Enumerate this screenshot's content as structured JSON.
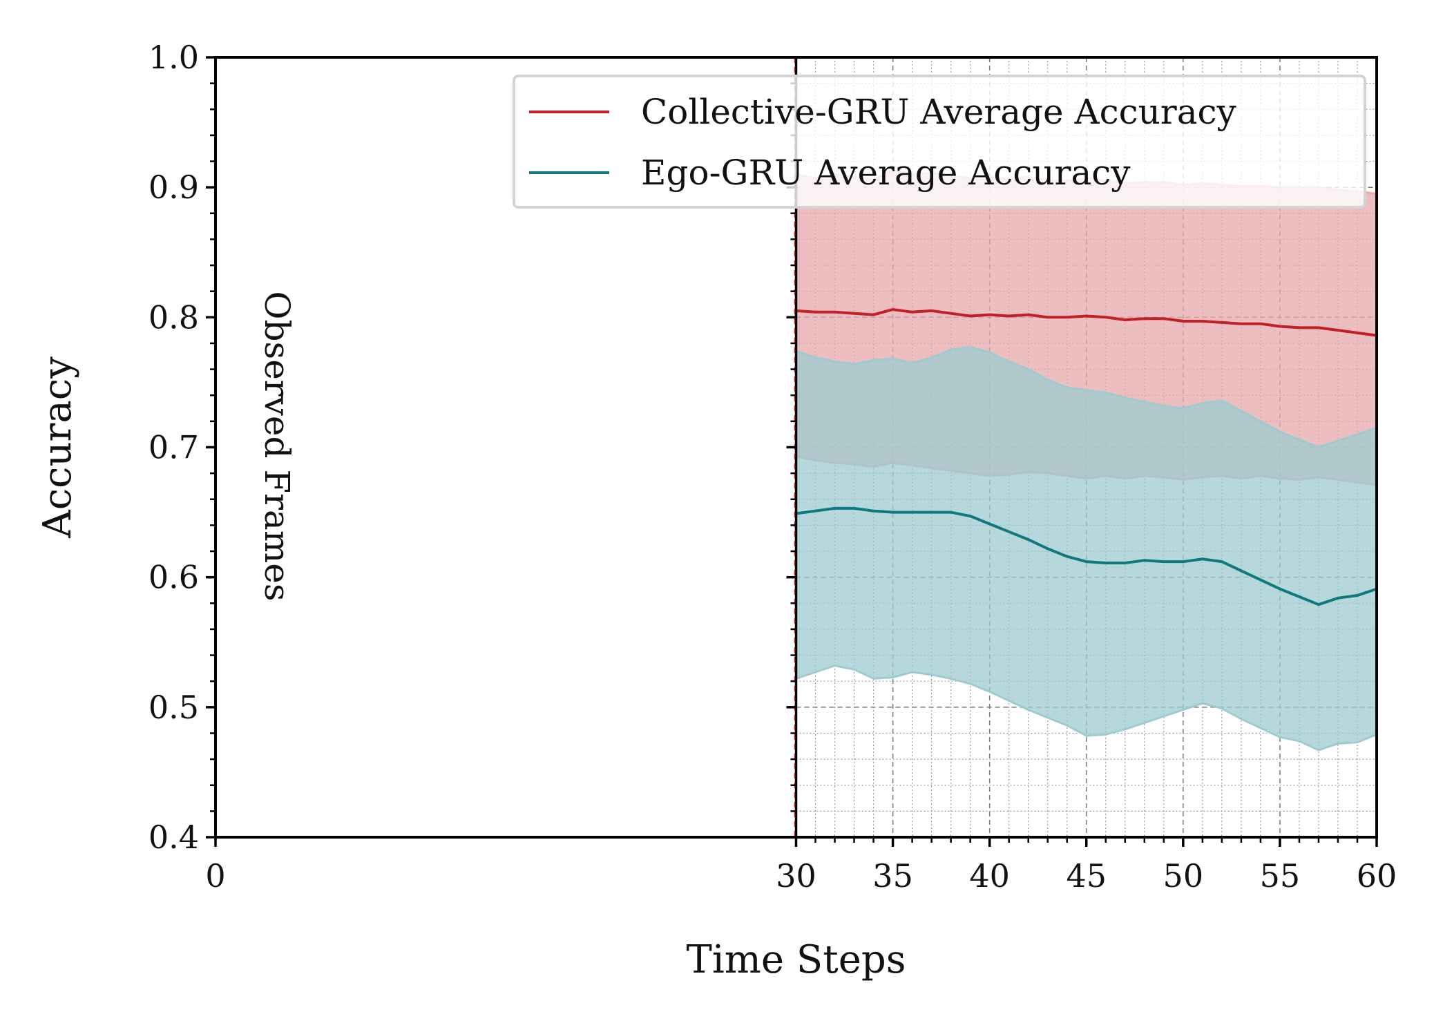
{
  "chart_data": {
    "type": "line",
    "title": "",
    "xlabel": "Time Steps",
    "ylabel": "Accuracy",
    "xlim": [
      0,
      60
    ],
    "ylim": [
      0.4,
      1.0
    ],
    "x_ticks": [
      0,
      30,
      35,
      40,
      45,
      50,
      55,
      60
    ],
    "y_ticks": [
      0.4,
      0.5,
      0.6,
      0.7,
      0.8,
      0.9,
      1.0
    ],
    "x_tick_labels": [
      "0",
      "30",
      "35",
      "40",
      "45",
      "50",
      "55",
      "60"
    ],
    "y_tick_labels": [
      "0.4",
      "0.5",
      "0.6",
      "0.7",
      "0.8",
      "0.9",
      "1.0"
    ],
    "grid": true,
    "legend_position": "top-right",
    "annotation": {
      "text": "Observed Frames",
      "x": 30
    },
    "x": [
      30,
      31,
      32,
      33,
      34,
      35,
      36,
      37,
      38,
      39,
      40,
      41,
      42,
      43,
      44,
      45,
      46,
      47,
      48,
      49,
      50,
      51,
      52,
      53,
      54,
      55,
      56,
      57,
      58,
      59,
      60
    ],
    "series": [
      {
        "name": "Collective-GRU Average Accuracy",
        "color": "#c41e26",
        "fill_color": "#e6a8ab",
        "mean": [
          0.805,
          0.804,
          0.804,
          0.803,
          0.802,
          0.806,
          0.804,
          0.805,
          0.803,
          0.801,
          0.802,
          0.801,
          0.802,
          0.8,
          0.8,
          0.801,
          0.8,
          0.798,
          0.799,
          0.799,
          0.797,
          0.797,
          0.796,
          0.795,
          0.795,
          0.793,
          0.792,
          0.792,
          0.79,
          0.788,
          0.786
        ],
        "upper": [
          0.91,
          0.907,
          0.91,
          0.908,
          0.906,
          0.913,
          0.91,
          0.911,
          0.909,
          0.907,
          0.908,
          0.906,
          0.908,
          0.905,
          0.905,
          0.907,
          0.905,
          0.903,
          0.904,
          0.904,
          0.902,
          0.903,
          0.902,
          0.901,
          0.901,
          0.9,
          0.9,
          0.9,
          0.898,
          0.897,
          0.895
        ],
        "lower": [
          0.693,
          0.69,
          0.688,
          0.687,
          0.685,
          0.688,
          0.686,
          0.684,
          0.682,
          0.68,
          0.678,
          0.679,
          0.681,
          0.68,
          0.678,
          0.676,
          0.678,
          0.676,
          0.678,
          0.677,
          0.675,
          0.677,
          0.678,
          0.676,
          0.678,
          0.676,
          0.675,
          0.677,
          0.675,
          0.673,
          0.671
        ]
      },
      {
        "name": "Ego-GRU Average Accuracy",
        "color": "#0e7a80",
        "fill_color": "#9ecbd0",
        "mean": [
          0.649,
          0.651,
          0.653,
          0.653,
          0.651,
          0.65,
          0.65,
          0.65,
          0.65,
          0.647,
          0.641,
          0.635,
          0.629,
          0.622,
          0.616,
          0.612,
          0.611,
          0.611,
          0.613,
          0.612,
          0.612,
          0.614,
          0.612,
          0.605,
          0.598,
          0.591,
          0.585,
          0.579,
          0.584,
          0.586,
          0.591
        ],
        "upper": [
          0.774,
          0.769,
          0.766,
          0.764,
          0.767,
          0.768,
          0.765,
          0.769,
          0.775,
          0.777,
          0.773,
          0.766,
          0.76,
          0.752,
          0.746,
          0.744,
          0.742,
          0.738,
          0.735,
          0.732,
          0.73,
          0.734,
          0.736,
          0.728,
          0.72,
          0.712,
          0.706,
          0.7,
          0.705,
          0.71,
          0.715
        ],
        "lower": [
          0.522,
          0.527,
          0.532,
          0.529,
          0.522,
          0.523,
          0.527,
          0.525,
          0.522,
          0.518,
          0.512,
          0.505,
          0.498,
          0.492,
          0.486,
          0.478,
          0.479,
          0.483,
          0.488,
          0.493,
          0.498,
          0.503,
          0.499,
          0.491,
          0.484,
          0.477,
          0.474,
          0.467,
          0.472,
          0.473,
          0.479
        ]
      }
    ]
  }
}
